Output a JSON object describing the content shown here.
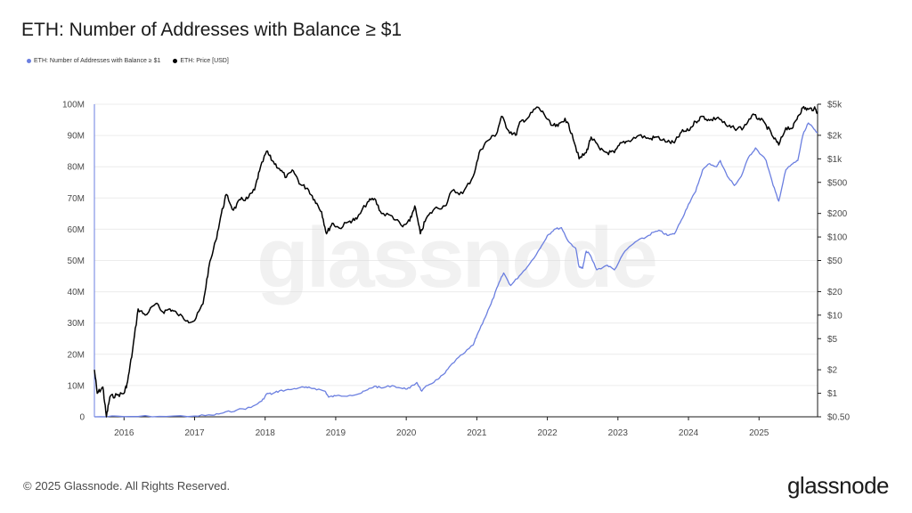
{
  "title": "ETH: Number of Addresses with Balance ≥ $1",
  "watermark": "glassnode",
  "footer": {
    "copyright": "© 2025 Glassnode. All Rights Reserved.",
    "logo": "glassnode"
  },
  "colors": {
    "addresses": "#6b7fe0",
    "price": "#000000",
    "grid": "#ececec",
    "axis_line": "#1a1a1a"
  },
  "chart_data": {
    "type": "line",
    "title": "ETH: Number of Addresses with Balance ≥ $1",
    "xlabel": "",
    "ylabel": "",
    "x_range": [
      2015.58,
      2025.83
    ],
    "x_ticks": [
      {
        "value": 2016.0,
        "label": "2016"
      },
      {
        "value": 2017.0,
        "label": "2017"
      },
      {
        "value": 2018.0,
        "label": "2018"
      },
      {
        "value": 2019.0,
        "label": "2019"
      },
      {
        "value": 2020.0,
        "label": "2020"
      },
      {
        "value": 2021.0,
        "label": "2021"
      },
      {
        "value": 2022.0,
        "label": "2022"
      },
      {
        "value": 2023.0,
        "label": "2023"
      },
      {
        "value": 2024.0,
        "label": "2024"
      },
      {
        "value": 2025.0,
        "label": "2025"
      }
    ],
    "y_left": {
      "range": [
        0,
        100000000
      ],
      "ticks": [
        {
          "value": 0,
          "label": "0"
        },
        {
          "value": 10000000,
          "label": "10M"
        },
        {
          "value": 20000000,
          "label": "20M"
        },
        {
          "value": 30000000,
          "label": "30M"
        },
        {
          "value": 40000000,
          "label": "40M"
        },
        {
          "value": 50000000,
          "label": "50M"
        },
        {
          "value": 60000000,
          "label": "60M"
        },
        {
          "value": 70000000,
          "label": "70M"
        },
        {
          "value": 80000000,
          "label": "80M"
        },
        {
          "value": 90000000,
          "label": "90M"
        },
        {
          "value": 100000000,
          "label": "100M"
        }
      ]
    },
    "y_right": {
      "scale": "log",
      "range": [
        0.5,
        5000
      ],
      "ticks": [
        {
          "value": 0.5,
          "label": "$0.50"
        },
        {
          "value": 1,
          "label": "$1"
        },
        {
          "value": 2,
          "label": "$2"
        },
        {
          "value": 5,
          "label": "$5"
        },
        {
          "value": 10,
          "label": "$10"
        },
        {
          "value": 20,
          "label": "$20"
        },
        {
          "value": 50,
          "label": "$50"
        },
        {
          "value": 100,
          "label": "$100"
        },
        {
          "value": 200,
          "label": "$200"
        },
        {
          "value": 500,
          "label": "$500"
        },
        {
          "value": 1000,
          "label": "$1k"
        },
        {
          "value": 2000,
          "label": "$2k"
        },
        {
          "value": 5000,
          "label": "$5k"
        }
      ]
    },
    "series": [
      {
        "name": "ETH: Number of Addresses with Balance ≥ $1",
        "axis": "left",
        "color": "#6b7fe0",
        "points": [
          [
            2015.58,
            0
          ],
          [
            2016.0,
            60000
          ],
          [
            2016.5,
            150000
          ],
          [
            2017.0,
            250000
          ],
          [
            2017.25,
            500000
          ],
          [
            2017.4,
            1200000
          ],
          [
            2017.6,
            2200000
          ],
          [
            2017.8,
            3000000
          ],
          [
            2017.95,
            5000000
          ],
          [
            2018.03,
            7500000
          ],
          [
            2018.1,
            7300000
          ],
          [
            2018.2,
            8300000
          ],
          [
            2018.35,
            8700000
          ],
          [
            2018.5,
            9400000
          ],
          [
            2018.6,
            9300000
          ],
          [
            2018.7,
            9100000
          ],
          [
            2018.85,
            8200000
          ],
          [
            2018.9,
            6300000
          ],
          [
            2019.0,
            6700000
          ],
          [
            2019.2,
            6900000
          ],
          [
            2019.35,
            7500000
          ],
          [
            2019.45,
            8600000
          ],
          [
            2019.55,
            9800000
          ],
          [
            2019.65,
            9200000
          ],
          [
            2019.8,
            10000000
          ],
          [
            2019.95,
            9000000
          ],
          [
            2020.05,
            9200000
          ],
          [
            2020.15,
            11000000
          ],
          [
            2020.22,
            8200000
          ],
          [
            2020.3,
            10000000
          ],
          [
            2020.45,
            12000000
          ],
          [
            2020.55,
            14000000
          ],
          [
            2020.65,
            17000000
          ],
          [
            2020.8,
            20000000
          ],
          [
            2020.95,
            23000000
          ],
          [
            2021.0,
            26000000
          ],
          [
            2021.1,
            31000000
          ],
          [
            2021.2,
            36000000
          ],
          [
            2021.3,
            42000000
          ],
          [
            2021.38,
            46000000
          ],
          [
            2021.48,
            42000000
          ],
          [
            2021.6,
            45000000
          ],
          [
            2021.75,
            49000000
          ],
          [
            2021.9,
            54000000
          ],
          [
            2022.0,
            58000000
          ],
          [
            2022.1,
            60000000
          ],
          [
            2022.2,
            60500000
          ],
          [
            2022.3,
            56000000
          ],
          [
            2022.4,
            54000000
          ],
          [
            2022.45,
            48000000
          ],
          [
            2022.5,
            47500000
          ],
          [
            2022.55,
            53000000
          ],
          [
            2022.6,
            52000000
          ],
          [
            2022.7,
            47000000
          ],
          [
            2022.85,
            48500000
          ],
          [
            2022.95,
            47000000
          ],
          [
            2023.1,
            53000000
          ],
          [
            2023.25,
            56000000
          ],
          [
            2023.4,
            57500000
          ],
          [
            2023.5,
            59000000
          ],
          [
            2023.6,
            59500000
          ],
          [
            2023.7,
            58000000
          ],
          [
            2023.8,
            58500000
          ],
          [
            2023.9,
            63000000
          ],
          [
            2024.0,
            68000000
          ],
          [
            2024.1,
            72000000
          ],
          [
            2024.2,
            79000000
          ],
          [
            2024.3,
            81000000
          ],
          [
            2024.4,
            80000000
          ],
          [
            2024.45,
            82000000
          ],
          [
            2024.55,
            77000000
          ],
          [
            2024.65,
            74000000
          ],
          [
            2024.75,
            77000000
          ],
          [
            2024.85,
            83000000
          ],
          [
            2024.95,
            86000000
          ],
          [
            2025.1,
            82000000
          ],
          [
            2025.2,
            74000000
          ],
          [
            2025.28,
            69000000
          ],
          [
            2025.38,
            79000000
          ],
          [
            2025.48,
            81000000
          ],
          [
            2025.55,
            82000000
          ],
          [
            2025.62,
            90000000
          ],
          [
            2025.7,
            94000000
          ],
          [
            2025.78,
            92000000
          ],
          [
            2025.83,
            91000000
          ]
        ]
      },
      {
        "name": "ETH: Price [USD]",
        "axis": "right",
        "color": "#000000",
        "points": [
          [
            2015.58,
            2.0
          ],
          [
            2015.62,
            1.0
          ],
          [
            2015.7,
            1.2
          ],
          [
            2015.75,
            0.5
          ],
          [
            2015.8,
            0.9
          ],
          [
            2015.9,
            0.95
          ],
          [
            2016.0,
            1.0
          ],
          [
            2016.05,
            1.4
          ],
          [
            2016.12,
            3.5
          ],
          [
            2016.2,
            12
          ],
          [
            2016.3,
            10
          ],
          [
            2016.45,
            14
          ],
          [
            2016.55,
            11
          ],
          [
            2016.65,
            12
          ],
          [
            2016.75,
            10.5
          ],
          [
            2016.9,
            8.5
          ],
          [
            2017.0,
            8.5
          ],
          [
            2017.12,
            14
          ],
          [
            2017.2,
            40
          ],
          [
            2017.3,
            90
          ],
          [
            2017.38,
            200
          ],
          [
            2017.45,
            350
          ],
          [
            2017.55,
            220
          ],
          [
            2017.65,
            300
          ],
          [
            2017.75,
            310
          ],
          [
            2017.85,
            400
          ],
          [
            2017.92,
            700
          ],
          [
            2018.02,
            1250
          ],
          [
            2018.1,
            950
          ],
          [
            2018.2,
            750
          ],
          [
            2018.3,
            580
          ],
          [
            2018.4,
            700
          ],
          [
            2018.5,
            470
          ],
          [
            2018.6,
            420
          ],
          [
            2018.7,
            300
          ],
          [
            2018.8,
            210
          ],
          [
            2018.87,
            110
          ],
          [
            2018.95,
            150
          ],
          [
            2019.05,
            130
          ],
          [
            2019.2,
            160
          ],
          [
            2019.3,
            170
          ],
          [
            2019.45,
            280
          ],
          [
            2019.55,
            310
          ],
          [
            2019.65,
            200
          ],
          [
            2019.8,
            185
          ],
          [
            2019.95,
            135
          ],
          [
            2020.05,
            160
          ],
          [
            2020.12,
            250
          ],
          [
            2020.2,
            110
          ],
          [
            2020.28,
            170
          ],
          [
            2020.4,
            230
          ],
          [
            2020.55,
            250
          ],
          [
            2020.65,
            390
          ],
          [
            2020.8,
            360
          ],
          [
            2020.95,
            600
          ],
          [
            2021.05,
            1300
          ],
          [
            2021.15,
            1700
          ],
          [
            2021.28,
            2100
          ],
          [
            2021.35,
            3500
          ],
          [
            2021.45,
            2300
          ],
          [
            2021.55,
            2000
          ],
          [
            2021.62,
            3000
          ],
          [
            2021.72,
            3300
          ],
          [
            2021.85,
            4600
          ],
          [
            2021.95,
            3800
          ],
          [
            2022.05,
            2700
          ],
          [
            2022.15,
            2600
          ],
          [
            2022.25,
            3300
          ],
          [
            2022.35,
            2100
          ],
          [
            2022.45,
            1000
          ],
          [
            2022.55,
            1200
          ],
          [
            2022.62,
            1900
          ],
          [
            2022.75,
            1300
          ],
          [
            2022.85,
            1200
          ],
          [
            2022.95,
            1200
          ],
          [
            2023.05,
            1600
          ],
          [
            2023.15,
            1700
          ],
          [
            2023.3,
            2000
          ],
          [
            2023.45,
            1800
          ],
          [
            2023.55,
            1900
          ],
          [
            2023.7,
            1650
          ],
          [
            2023.8,
            1600
          ],
          [
            2023.9,
            2200
          ],
          [
            2024.0,
            2300
          ],
          [
            2024.1,
            3000
          ],
          [
            2024.2,
            3500
          ],
          [
            2024.3,
            3100
          ],
          [
            2024.42,
            3400
          ],
          [
            2024.55,
            2600
          ],
          [
            2024.65,
            2450
          ],
          [
            2024.78,
            2500
          ],
          [
            2024.9,
            3600
          ],
          [
            2025.0,
            3300
          ],
          [
            2025.1,
            2700
          ],
          [
            2025.2,
            1900
          ],
          [
            2025.28,
            1500
          ],
          [
            2025.38,
            2500
          ],
          [
            2025.48,
            2500
          ],
          [
            2025.55,
            3500
          ],
          [
            2025.62,
            4500
          ],
          [
            2025.7,
            4300
          ],
          [
            2025.78,
            4400
          ],
          [
            2025.83,
            4000
          ]
        ]
      }
    ]
  }
}
